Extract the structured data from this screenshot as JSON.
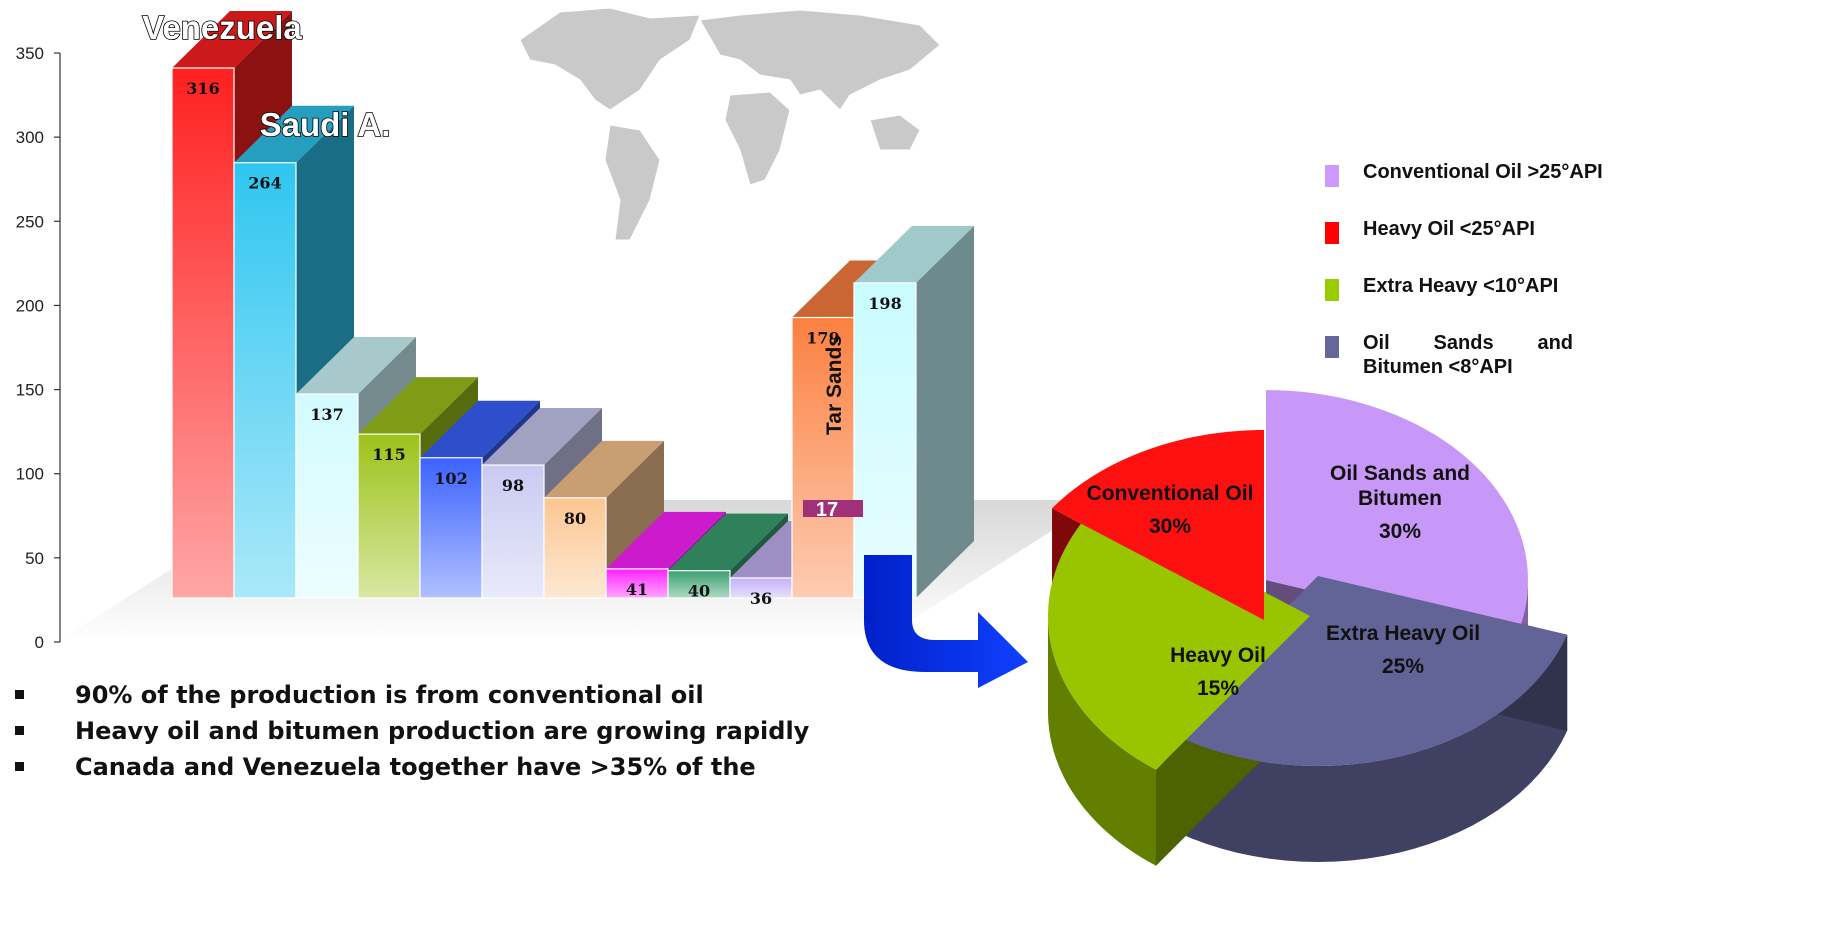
{
  "chart_data": [
    {
      "type": "bar",
      "yticks": [
        0,
        50,
        100,
        150,
        200,
        250,
        300,
        350
      ],
      "ylim": [
        0,
        350
      ],
      "values": [
        316,
        264,
        137,
        115,
        102,
        98,
        80,
        41,
        40,
        36,
        179,
        198
      ],
      "stacked_inner_value": "17",
      "value_labels": [
        "316",
        "264",
        "137",
        "115",
        "102",
        "98",
        "80",
        "41",
        "40",
        "36",
        "179",
        "198"
      ],
      "colors": [
        "#ff2020",
        "#2ec6f0",
        "#d2fbff",
        "#9dc31a",
        "#3b62ff",
        "#c9caf2",
        "#fbc690",
        "#ff22ff",
        "#3aa170",
        "#c4b2f4",
        "#fb8040",
        "#c8fbff"
      ],
      "annotations": {
        "venezuela": "Venezuela",
        "saudi": "Saudi A.",
        "tar_sands": "Tar Sands"
      }
    },
    {
      "type": "pie",
      "slices": [
        {
          "label_line1": "Conventional Oil",
          "label_line2": "",
          "value": 30,
          "percent": "30%",
          "color": "#c898f8"
        },
        {
          "label_line1": "Oil Sands and",
          "label_line2": "Bitumen",
          "value": 30,
          "percent": "30%",
          "color": "#626396"
        },
        {
          "label_line1": "Extra Heavy Oil",
          "label_line2": "",
          "value": 25,
          "percent": "25%",
          "color": "#99c400"
        },
        {
          "label_line1": "Heavy Oil",
          "label_line2": "",
          "value": 15,
          "percent": "15%",
          "color": "#ff1010"
        }
      ],
      "legend_position": "top-right",
      "legend": [
        {
          "label": "Conventional Oil >25°API",
          "color": "#cc99ff"
        },
        {
          "label": "Heavy Oil <25°API",
          "color": "#ff0000"
        },
        {
          "label": "Extra Heavy <10°API",
          "color": "#99cc00"
        },
        {
          "label": "Oil Sands and Bitumen <8°API",
          "color": "#666699"
        }
      ]
    }
  ],
  "bullets": [
    "90% of the production is from conventional oil",
    "Heavy oil and bitumen production are growing rapidly",
    "Canada and Venezuela together have >35% of the"
  ]
}
